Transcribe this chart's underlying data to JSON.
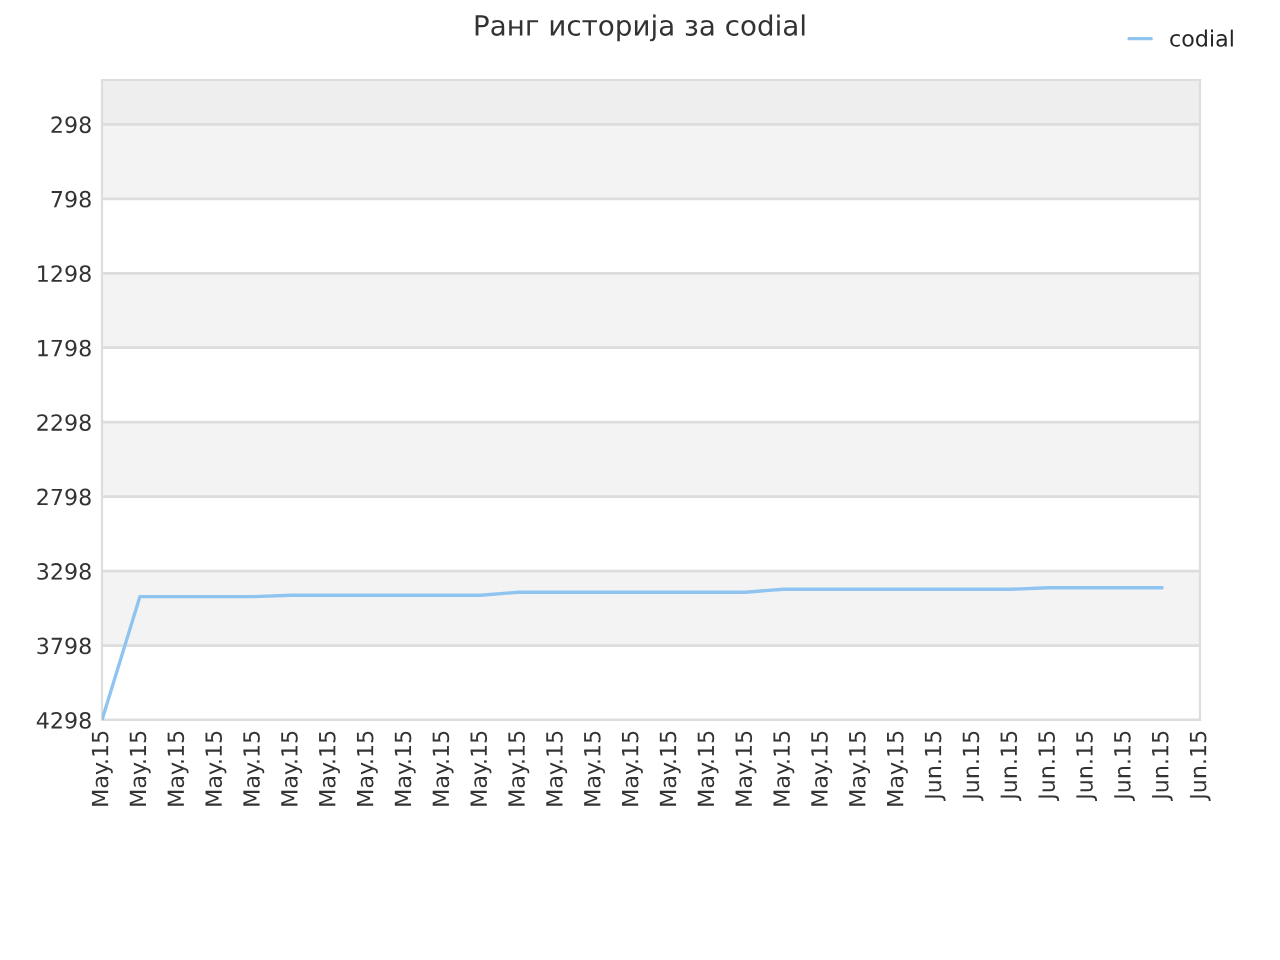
{
  "chart_data": {
    "type": "line",
    "title": "Ранг историја за codial",
    "categories": [
      "May.15",
      "May.15",
      "May.15",
      "May.15",
      "May.15",
      "May.15",
      "May.15",
      "May.15",
      "May.15",
      "May.15",
      "May.15",
      "May.15",
      "May.15",
      "May.15",
      "May.15",
      "May.15",
      "May.15",
      "May.15",
      "May.15",
      "May.15",
      "May.15",
      "May.15",
      "Jun.15",
      "Jun.15",
      "Jun.15",
      "Jun.15",
      "Jun.15",
      "Jun.15",
      "Jun.15",
      "Jun.15"
    ],
    "series": [
      {
        "name": "codial",
        "color": "#90c4f0",
        "values": [
          4298,
          3470,
          3470,
          3470,
          3470,
          3460,
          3460,
          3460,
          3460,
          3460,
          3460,
          3440,
          3440,
          3440,
          3440,
          3440,
          3440,
          3440,
          3420,
          3420,
          3420,
          3420,
          3420,
          3420,
          3420,
          3410,
          3410,
          3410,
          3410,
          null
        ]
      }
    ],
    "ylim": [
      4298,
      0
    ],
    "yticks": [
      298,
      798,
      1298,
      1798,
      2298,
      2798,
      3298,
      3798,
      4298
    ],
    "bands": [
      {
        "axis": "y",
        "from": 0,
        "to": 298,
        "color": "#eeeeee"
      },
      {
        "axis": "y",
        "from": 298,
        "to": 798,
        "color": "#f3f3f3"
      },
      {
        "axis": "y",
        "from": 1298,
        "to": 1798,
        "color": "#f3f3f3"
      },
      {
        "axis": "y",
        "from": 2298,
        "to": 2798,
        "color": "#f3f3f3"
      },
      {
        "axis": "y",
        "from": 3298,
        "to": 3798,
        "color": "#f3f3f3"
      }
    ],
    "grid": "y",
    "legend": "top right",
    "marker": "none",
    "line_style": "solid"
  }
}
